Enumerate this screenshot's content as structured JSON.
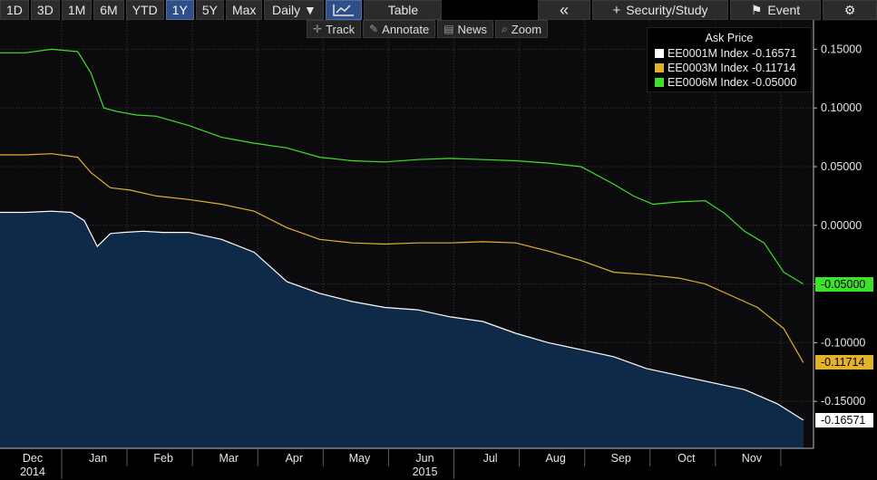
{
  "toolbar": {
    "ranges": [
      "1D",
      "3D",
      "1M",
      "6M",
      "YTD",
      "1Y",
      "5Y",
      "Max"
    ],
    "active_range": "1Y",
    "frequency": "Daily ▼",
    "table_label": "Table",
    "collapse_label": "«",
    "security_study_label": "Security/Study",
    "event_label": "Event",
    "settings_label": "⚙"
  },
  "subtools": {
    "track": "Track",
    "annotate": "Annotate",
    "news": "News",
    "zoom": "Zoom"
  },
  "chart_data": {
    "type": "area",
    "title": "Ask Price",
    "ylim": [
      -0.19,
      0.175
    ],
    "y_ticks": [
      0.15,
      0.1,
      0.05,
      0.0,
      -0.05,
      -0.1,
      -0.15
    ],
    "y_tick_labels": [
      "0.15000",
      "0.10000",
      "0.05000",
      "0.00000",
      "-0.05000",
      "-0.10000",
      "-0.15000"
    ],
    "x_ticks": [
      {
        "label": "Dec",
        "sub": "2014",
        "t": 0.0
      },
      {
        "label": "Jan",
        "sub": "",
        "t": 1.0
      },
      {
        "label": "Feb",
        "sub": "",
        "t": 2.0
      },
      {
        "label": "Mar",
        "sub": "",
        "t": 3.0
      },
      {
        "label": "Apr",
        "sub": "",
        "t": 4.0
      },
      {
        "label": "May",
        "sub": "",
        "t": 5.0
      },
      {
        "label": "Jun",
        "sub": "2015",
        "t": 6.0
      },
      {
        "label": "Jul",
        "sub": "",
        "t": 7.0
      },
      {
        "label": "Aug",
        "sub": "",
        "t": 8.0
      },
      {
        "label": "Sep",
        "sub": "",
        "t": 9.0
      },
      {
        "label": "Oct",
        "sub": "",
        "t": 10.0
      },
      {
        "label": "Nov",
        "sub": "",
        "t": 11.0
      }
    ],
    "x_range": [
      0,
      12
    ],
    "grid": true,
    "legend_position": "top-right",
    "series": [
      {
        "name": "EE0001M Index",
        "last_label": "-0.16571",
        "color": "#ffffff",
        "fill": "#0f2a48",
        "t": [
          0,
          0.4,
          0.7,
          0.9,
          1.1,
          1.3,
          1.5,
          1.8,
          2.1,
          2.5,
          3.0,
          3.5,
          4.0,
          4.5,
          5.0,
          5.5,
          6.0,
          6.5,
          7.0,
          7.5,
          8.0,
          8.5,
          9.0,
          9.5,
          10.0,
          10.5,
          11.0,
          11.5,
          11.9
        ],
        "y": [
          0.011,
          0.012,
          0.011,
          0.004,
          -0.018,
          -0.007,
          -0.006,
          -0.005,
          -0.006,
          -0.006,
          -0.012,
          -0.023,
          -0.048,
          -0.058,
          -0.065,
          -0.07,
          -0.072,
          -0.078,
          -0.082,
          -0.092,
          -0.1,
          -0.106,
          -0.112,
          -0.122,
          -0.128,
          -0.134,
          -0.14,
          -0.152,
          -0.166
        ]
      },
      {
        "name": "EE0003M Index",
        "last_label": "-0.11714",
        "color": "#e3b12a",
        "t": [
          0,
          0.4,
          0.8,
          1.0,
          1.3,
          1.6,
          2.0,
          2.5,
          3.0,
          3.5,
          4.0,
          4.5,
          5.0,
          5.5,
          6.0,
          6.5,
          7.0,
          7.5,
          8.0,
          8.5,
          9.0,
          9.5,
          10.0,
          10.4,
          10.8,
          11.2,
          11.6,
          11.9
        ],
        "y": [
          0.06,
          0.061,
          0.058,
          0.045,
          0.032,
          0.03,
          0.025,
          0.022,
          0.018,
          0.012,
          -0.002,
          -0.012,
          -0.015,
          -0.016,
          -0.015,
          -0.015,
          -0.014,
          -0.015,
          -0.022,
          -0.03,
          -0.04,
          -0.042,
          -0.045,
          -0.05,
          -0.06,
          -0.07,
          -0.088,
          -0.117
        ]
      },
      {
        "name": "EE0006M Index",
        "last_label": "-0.05000",
        "color": "#3ee12c",
        "t": [
          0,
          0.4,
          0.8,
          1.0,
          1.2,
          1.4,
          1.7,
          2.0,
          2.5,
          3.0,
          3.5,
          4.0,
          4.5,
          5.0,
          5.5,
          6.0,
          6.5,
          7.0,
          7.5,
          8.0,
          8.5,
          9.0,
          9.3,
          9.6,
          10.0,
          10.4,
          10.7,
          11.0,
          11.3,
          11.6,
          11.9
        ],
        "y": [
          0.147,
          0.15,
          0.148,
          0.13,
          0.1,
          0.097,
          0.094,
          0.093,
          0.085,
          0.075,
          0.07,
          0.066,
          0.058,
          0.055,
          0.054,
          0.056,
          0.057,
          0.056,
          0.055,
          0.053,
          0.05,
          0.035,
          0.025,
          0.018,
          0.02,
          0.021,
          0.01,
          -0.005,
          -0.015,
          -0.04,
          -0.05
        ]
      }
    ],
    "legend": [
      {
        "name": "EE0001M Index",
        "value": "-0.16571",
        "color": "#ffffff"
      },
      {
        "name": "EE0003M Index",
        "value": "-0.11714",
        "color": "#e3b12a"
      },
      {
        "name": "EE0006M Index",
        "value": "-0.05000",
        "color": "#3ee12c"
      }
    ]
  }
}
